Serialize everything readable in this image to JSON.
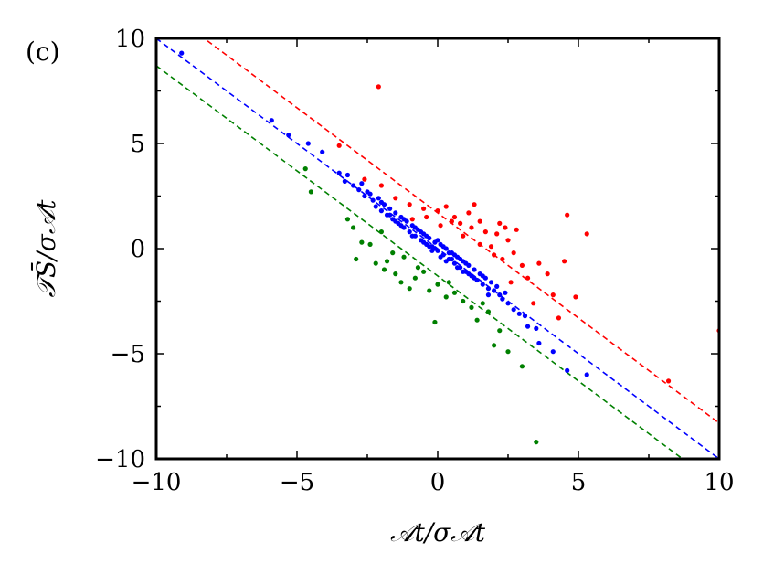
{
  "chart_data": {
    "type": "scatter",
    "panel_label": "(c)",
    "xlabel": "𝒜t/σ𝒜t",
    "ylabel": "𝒯S̄/σ𝒜t",
    "xlim": [
      -10,
      10
    ],
    "ylim": [
      -10,
      10
    ],
    "x_ticks": [
      -10,
      -5,
      0,
      5,
      10
    ],
    "y_ticks": [
      -10,
      -5,
      0,
      5,
      10
    ],
    "x_tick_labels": [
      "−10",
      "−5",
      "0",
      "5",
      "10"
    ],
    "y_tick_labels": [
      "−10",
      "−5",
      "0",
      "5",
      "10"
    ],
    "grid": false,
    "lines": [
      {
        "color": "#ff0000",
        "style": "dashed",
        "x": [
          -10,
          10
        ],
        "y": [
          11.7,
          -8.3
        ]
      },
      {
        "color": "#0000ff",
        "style": "dashed",
        "x": [
          -10,
          10
        ],
        "y": [
          10,
          -10
        ]
      },
      {
        "color": "#008000",
        "style": "dashed",
        "x": [
          -10,
          10
        ],
        "y": [
          8.7,
          -11.3
        ]
      }
    ],
    "series": [
      {
        "color": "#0000ff",
        "points": [
          [
            -9.1,
            9.3
          ],
          [
            -5.9,
            6.1
          ],
          [
            -5.3,
            5.4
          ],
          [
            -4.6,
            5.0
          ],
          [
            -4.1,
            4.6
          ],
          [
            -3.5,
            3.6
          ],
          [
            -3.3,
            3.2
          ],
          [
            -3.2,
            3.5
          ],
          [
            -3.0,
            3.0
          ],
          [
            -2.8,
            2.8
          ],
          [
            -2.7,
            3.1
          ],
          [
            -2.6,
            2.5
          ],
          [
            -2.5,
            2.7
          ],
          [
            -2.3,
            2.3
          ],
          [
            -2.2,
            2.0
          ],
          [
            -2.1,
            2.4
          ],
          [
            -2.0,
            1.8
          ],
          [
            -1.9,
            2.1
          ],
          [
            -1.8,
            1.6
          ],
          [
            -1.7,
            1.9
          ],
          [
            -1.6,
            1.4
          ],
          [
            -1.5,
            1.7
          ],
          [
            -1.4,
            1.2
          ],
          [
            -1.3,
            1.5
          ],
          [
            -1.2,
            1.0
          ],
          [
            -1.1,
            1.3
          ],
          [
            -1.0,
            0.8
          ],
          [
            -0.9,
            1.1
          ],
          [
            -0.8,
            0.6
          ],
          [
            -0.7,
            0.9
          ],
          [
            -0.6,
            0.4
          ],
          [
            -0.5,
            0.7
          ],
          [
            -0.4,
            0.2
          ],
          [
            -0.3,
            0.5
          ],
          [
            -0.2,
            0.1
          ],
          [
            -0.1,
            0.3
          ],
          [
            0.0,
            -0.1
          ],
          [
            0.1,
            0.2
          ],
          [
            0.2,
            -0.3
          ],
          [
            0.3,
            0.0
          ],
          [
            0.4,
            -0.5
          ],
          [
            0.5,
            -0.2
          ],
          [
            0.6,
            -0.7
          ],
          [
            0.7,
            -0.4
          ],
          [
            0.8,
            -0.9
          ],
          [
            0.9,
            -0.6
          ],
          [
            1.0,
            -1.1
          ],
          [
            1.1,
            -0.8
          ],
          [
            1.2,
            -1.3
          ],
          [
            1.3,
            -1.0
          ],
          [
            1.4,
            -1.5
          ],
          [
            1.5,
            -1.2
          ],
          [
            1.6,
            -1.7
          ],
          [
            1.7,
            -1.4
          ],
          [
            1.8,
            -1.9
          ],
          [
            1.9,
            -1.6
          ],
          [
            2.0,
            -2.0
          ],
          [
            2.1,
            -1.8
          ],
          [
            2.2,
            -2.2
          ],
          [
            2.3,
            -2.4
          ],
          [
            2.5,
            -2.6
          ],
          [
            2.7,
            -2.9
          ],
          [
            2.9,
            -3.1
          ],
          [
            3.1,
            -3.2
          ],
          [
            3.2,
            -3.7
          ],
          [
            3.5,
            -3.8
          ],
          [
            3.6,
            -4.5
          ],
          [
            4.1,
            -4.9
          ],
          [
            4.6,
            -5.8
          ],
          [
            5.3,
            -6.0
          ],
          [
            -0.5,
            0.3
          ],
          [
            -0.3,
            0.1
          ],
          [
            0.2,
            0.1
          ],
          [
            0.4,
            -0.2
          ],
          [
            -0.6,
            0.8
          ],
          [
            0.6,
            -0.3
          ],
          [
            0.8,
            -0.5
          ],
          [
            -0.9,
            0.6
          ],
          [
            1.0,
            -0.7
          ],
          [
            -1.2,
            1.4
          ],
          [
            0.3,
            -0.6
          ],
          [
            -0.2,
            -0.1
          ],
          [
            0.5,
            -0.5
          ],
          [
            -0.4,
            0.6
          ],
          [
            1.1,
            -1.2
          ],
          [
            -1.5,
            1.3
          ],
          [
            0.9,
            -1.1
          ],
          [
            -0.8,
            1.0
          ],
          [
            0.0,
            0.4
          ],
          [
            0.1,
            -0.4
          ],
          [
            1.3,
            -1.4
          ],
          [
            -1.3,
            1.1
          ],
          [
            0.7,
            -0.9
          ],
          [
            -0.1,
            0.0
          ],
          [
            1.6,
            -1.3
          ],
          [
            -1.7,
            1.6
          ],
          [
            2.4,
            -2.1
          ],
          [
            -2.4,
            2.6
          ],
          [
            1.8,
            -2.2
          ],
          [
            -2.0,
            2.2
          ],
          [
            10.0,
            -10.0
          ]
        ]
      },
      {
        "color": "#ff0000",
        "points": [
          [
            -2.1,
            7.7
          ],
          [
            -3.5,
            4.9
          ],
          [
            -2.6,
            3.3
          ],
          [
            -2.0,
            3.0
          ],
          [
            -1.5,
            2.4
          ],
          [
            -1.0,
            2.1
          ],
          [
            -0.5,
            1.9
          ],
          [
            0.0,
            1.8
          ],
          [
            0.3,
            2.0
          ],
          [
            0.6,
            1.5
          ],
          [
            1.1,
            1.7
          ],
          [
            0.8,
            1.2
          ],
          [
            1.5,
            1.3
          ],
          [
            1.2,
            1.0
          ],
          [
            1.7,
            0.8
          ],
          [
            2.1,
            0.7
          ],
          [
            2.5,
            0.4
          ],
          [
            2.8,
            0.9
          ],
          [
            2.4,
            1.0
          ],
          [
            2.7,
            -0.2
          ],
          [
            2.3,
            -0.5
          ],
          [
            3.0,
            -0.8
          ],
          [
            3.6,
            -0.7
          ],
          [
            3.9,
            -1.2
          ],
          [
            4.6,
            1.6
          ],
          [
            5.3,
            0.7
          ],
          [
            4.5,
            -0.6
          ],
          [
            4.1,
            -2.2
          ],
          [
            4.3,
            -3.3
          ],
          [
            3.4,
            -2.6
          ],
          [
            2.6,
            -1.6
          ],
          [
            2.0,
            -0.3
          ],
          [
            1.5,
            0.2
          ],
          [
            0.9,
            0.6
          ],
          [
            0.5,
            1.3
          ],
          [
            -0.4,
            1.5
          ],
          [
            -0.9,
            1.4
          ],
          [
            1.9,
            0.1
          ],
          [
            3.2,
            -1.4
          ],
          [
            4.9,
            -2.3
          ],
          [
            8.2,
            -6.3
          ],
          [
            10.0,
            -3.9
          ],
          [
            1.3,
            2.1
          ],
          [
            2.2,
            1.2
          ],
          [
            0.1,
            1.1
          ]
        ]
      },
      {
        "color": "#008000",
        "points": [
          [
            -4.7,
            3.8
          ],
          [
            -4.5,
            2.7
          ],
          [
            -3.0,
            1.0
          ],
          [
            -2.7,
            0.3
          ],
          [
            -2.2,
            -0.7
          ],
          [
            -2.0,
            0.8
          ],
          [
            -1.8,
            -0.6
          ],
          [
            -1.5,
            -1.2
          ],
          [
            -1.2,
            -0.4
          ],
          [
            -1.0,
            -1.9
          ],
          [
            -0.8,
            -1.4
          ],
          [
            -0.5,
            -1.1
          ],
          [
            -0.3,
            -2.0
          ],
          [
            0.0,
            -1.7
          ],
          [
            0.3,
            -2.3
          ],
          [
            0.6,
            -2.1
          ],
          [
            1.2,
            -2.8
          ],
          [
            1.4,
            -3.4
          ],
          [
            1.8,
            -3.0
          ],
          [
            2.2,
            -3.9
          ],
          [
            2.0,
            -4.6
          ],
          [
            2.5,
            -4.9
          ],
          [
            3.0,
            -5.6
          ],
          [
            3.5,
            -9.2
          ],
          [
            -0.1,
            -3.5
          ],
          [
            -1.6,
            -0.2
          ],
          [
            -2.4,
            0.2
          ],
          [
            -3.2,
            1.4
          ],
          [
            -1.3,
            -1.6
          ],
          [
            -0.7,
            -0.9
          ],
          [
            0.9,
            -2.5
          ],
          [
            1.6,
            -2.6
          ],
          [
            -2.9,
            -0.5
          ],
          [
            -1.9,
            -1.0
          ],
          [
            0.4,
            -1.6
          ]
        ]
      }
    ]
  }
}
